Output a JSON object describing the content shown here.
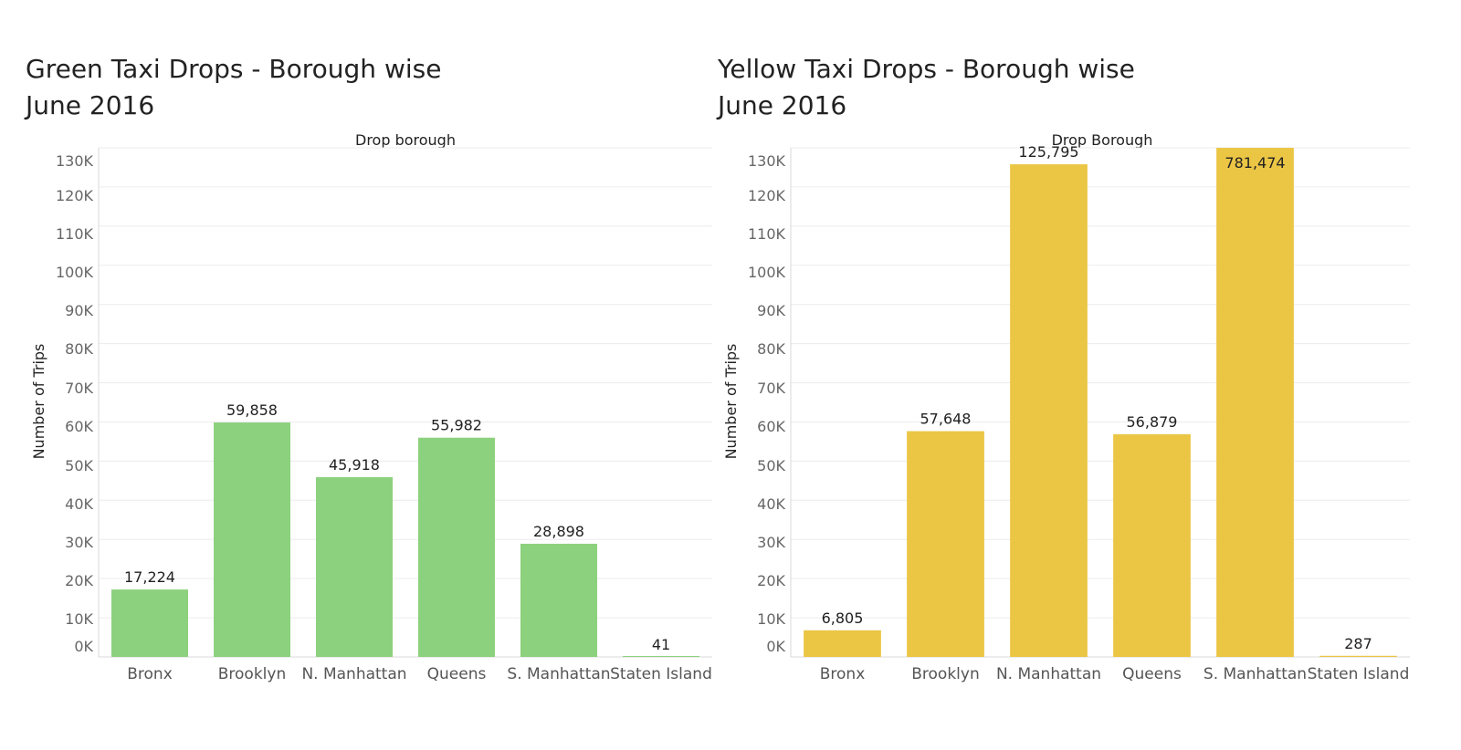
{
  "chart_data": [
    {
      "type": "bar",
      "title_line1": "Green Taxi Drops - Borough wise",
      "title_line2": "June 2016",
      "column_header": "Drop borough",
      "ylabel": "Number of Trips",
      "xlabel": "",
      "ylim": [
        0,
        130000
      ],
      "yticks": [
        "0K",
        "10K",
        "20K",
        "30K",
        "40K",
        "50K",
        "60K",
        "70K",
        "80K",
        "90K",
        "100K",
        "110K",
        "120K",
        "130K"
      ],
      "categories": [
        "Bronx",
        "Brooklyn",
        "N. Manhattan",
        "Queens",
        "S. Manhattan",
        "Staten Island"
      ],
      "values": [
        17224,
        59858,
        45918,
        55982,
        28898,
        41
      ],
      "value_labels": [
        "17,224",
        "59,858",
        "45,918",
        "55,982",
        "28,898",
        "41"
      ],
      "bar_color": "#8cd17d",
      "grid": true,
      "legend": "none"
    },
    {
      "type": "bar",
      "title_line1": "Yellow Taxi Drops - Borough wise",
      "title_line2": "June 2016",
      "column_header": "Drop Borough",
      "ylabel": "Number of Trips",
      "xlabel": "",
      "ylim": [
        0,
        130000
      ],
      "yticks": [
        "0K",
        "10K",
        "20K",
        "30K",
        "40K",
        "50K",
        "60K",
        "70K",
        "80K",
        "90K",
        "100K",
        "110K",
        "120K",
        "130K"
      ],
      "categories": [
        "Bronx",
        "Brooklyn",
        "N. Manhattan",
        "Queens",
        "S. Manhattan",
        "Staten Island"
      ],
      "values": [
        6805,
        57648,
        125795,
        56879,
        781474,
        287
      ],
      "value_labels": [
        "6,805",
        "57,648",
        "125,795",
        "56,879",
        "781,474",
        "287"
      ],
      "bar_color": "#ebc645",
      "grid": true,
      "legend": "none"
    }
  ]
}
